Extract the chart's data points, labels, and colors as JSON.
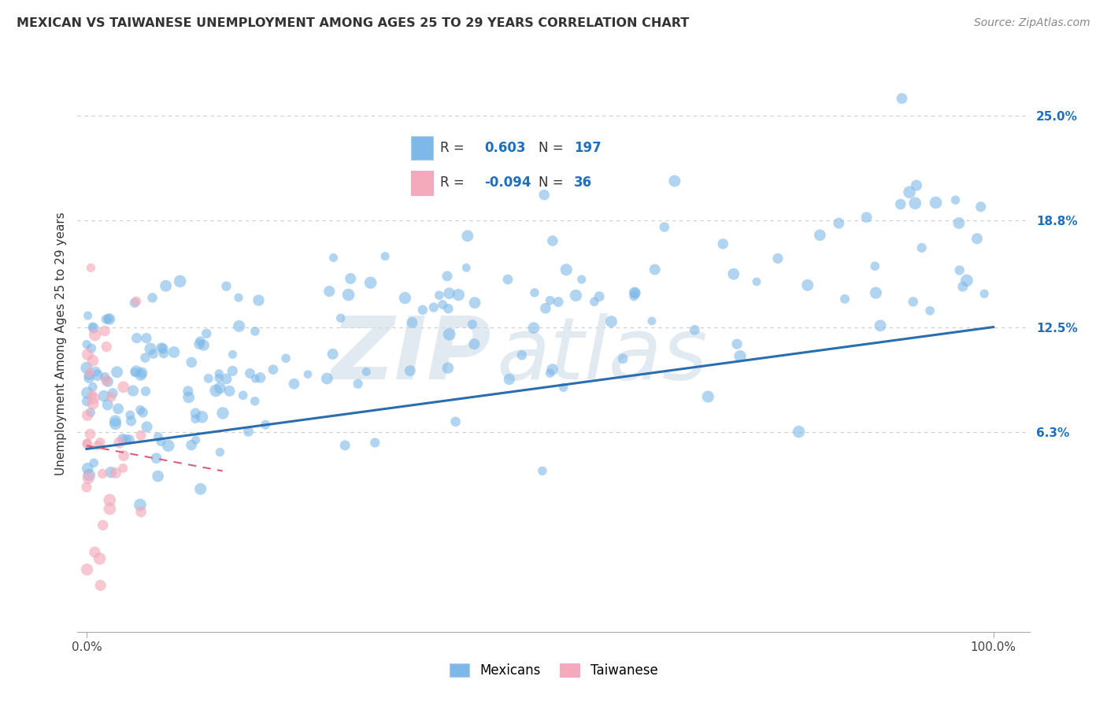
{
  "title": "MEXICAN VS TAIWANESE UNEMPLOYMENT AMONG AGES 25 TO 29 YEARS CORRELATION CHART",
  "source": "Source: ZipAtlas.com",
  "ylabel": "Unemployment Among Ages 25 to 29 years",
  "r_mexican": 0.603,
  "n_mexican": 197,
  "r_taiwanese": -0.094,
  "n_taiwanese": 36,
  "y_tick_values": [
    0.063,
    0.125,
    0.188,
    0.25
  ],
  "y_tick_labels": [
    "6.3%",
    "12.5%",
    "18.8%",
    "25.0%"
  ],
  "ylim": [
    -0.055,
    0.285
  ],
  "xlim": [
    -0.01,
    1.04
  ],
  "color_mexican": "#7EB8E8",
  "color_taiwanese": "#F4AABA",
  "color_line_mexican": "#2A6EAF",
  "color_line_taiwanese": "#D46080",
  "background_color": "#FFFFFF",
  "grid_color": "#CCCCCC",
  "watermark_zip": "ZIP",
  "watermark_atlas": "atlas",
  "legend_r_color": "#1f6fbf",
  "title_fontsize": 11.5,
  "source_fontsize": 10,
  "dot_size": 120,
  "line_mex_x0": 0.0,
  "line_mex_x1": 1.0,
  "line_mex_y0": 0.053,
  "line_mex_y1": 0.125
}
